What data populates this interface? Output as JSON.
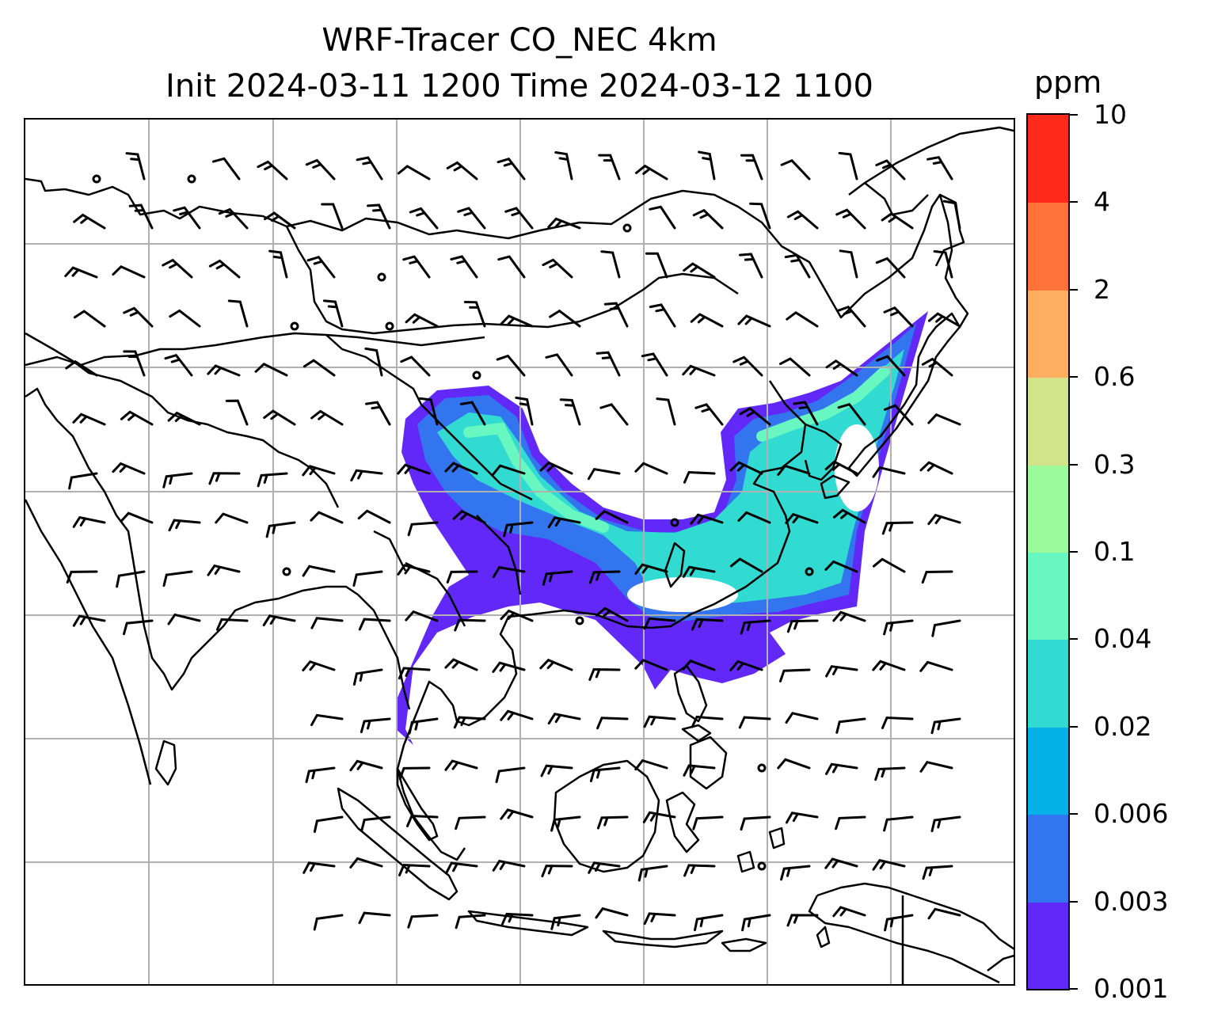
{
  "title_line1": "WRF-Tracer CO_NEC 4km",
  "title_line2": "Init 2024-03-11 1200 Time 2024-03-12 1100",
  "colorbar": {
    "unit": "ppm",
    "levels": [
      "0.001",
      "0.003",
      "0.006",
      "0.02",
      "0.04",
      "0.1",
      "0.3",
      "0.6",
      "2",
      "4",
      "10"
    ],
    "colors": [
      "#6128f7",
      "#3375ef",
      "#06b1e8",
      "#31dbd2",
      "#68f6c1",
      "#9bfa9a",
      "#d3e389",
      "#fdaf61",
      "#ff7339",
      "#ff2a19"
    ]
  },
  "map": {
    "gridlines": true,
    "gridline_color": "#b0b0b0",
    "coastline_color": "#000000",
    "wind_barbs": true,
    "plume_colors": {
      "outer": "#6128f7",
      "mid": "#3375ef",
      "inner": "#31dbd2",
      "core": "#68f6c1"
    }
  }
}
